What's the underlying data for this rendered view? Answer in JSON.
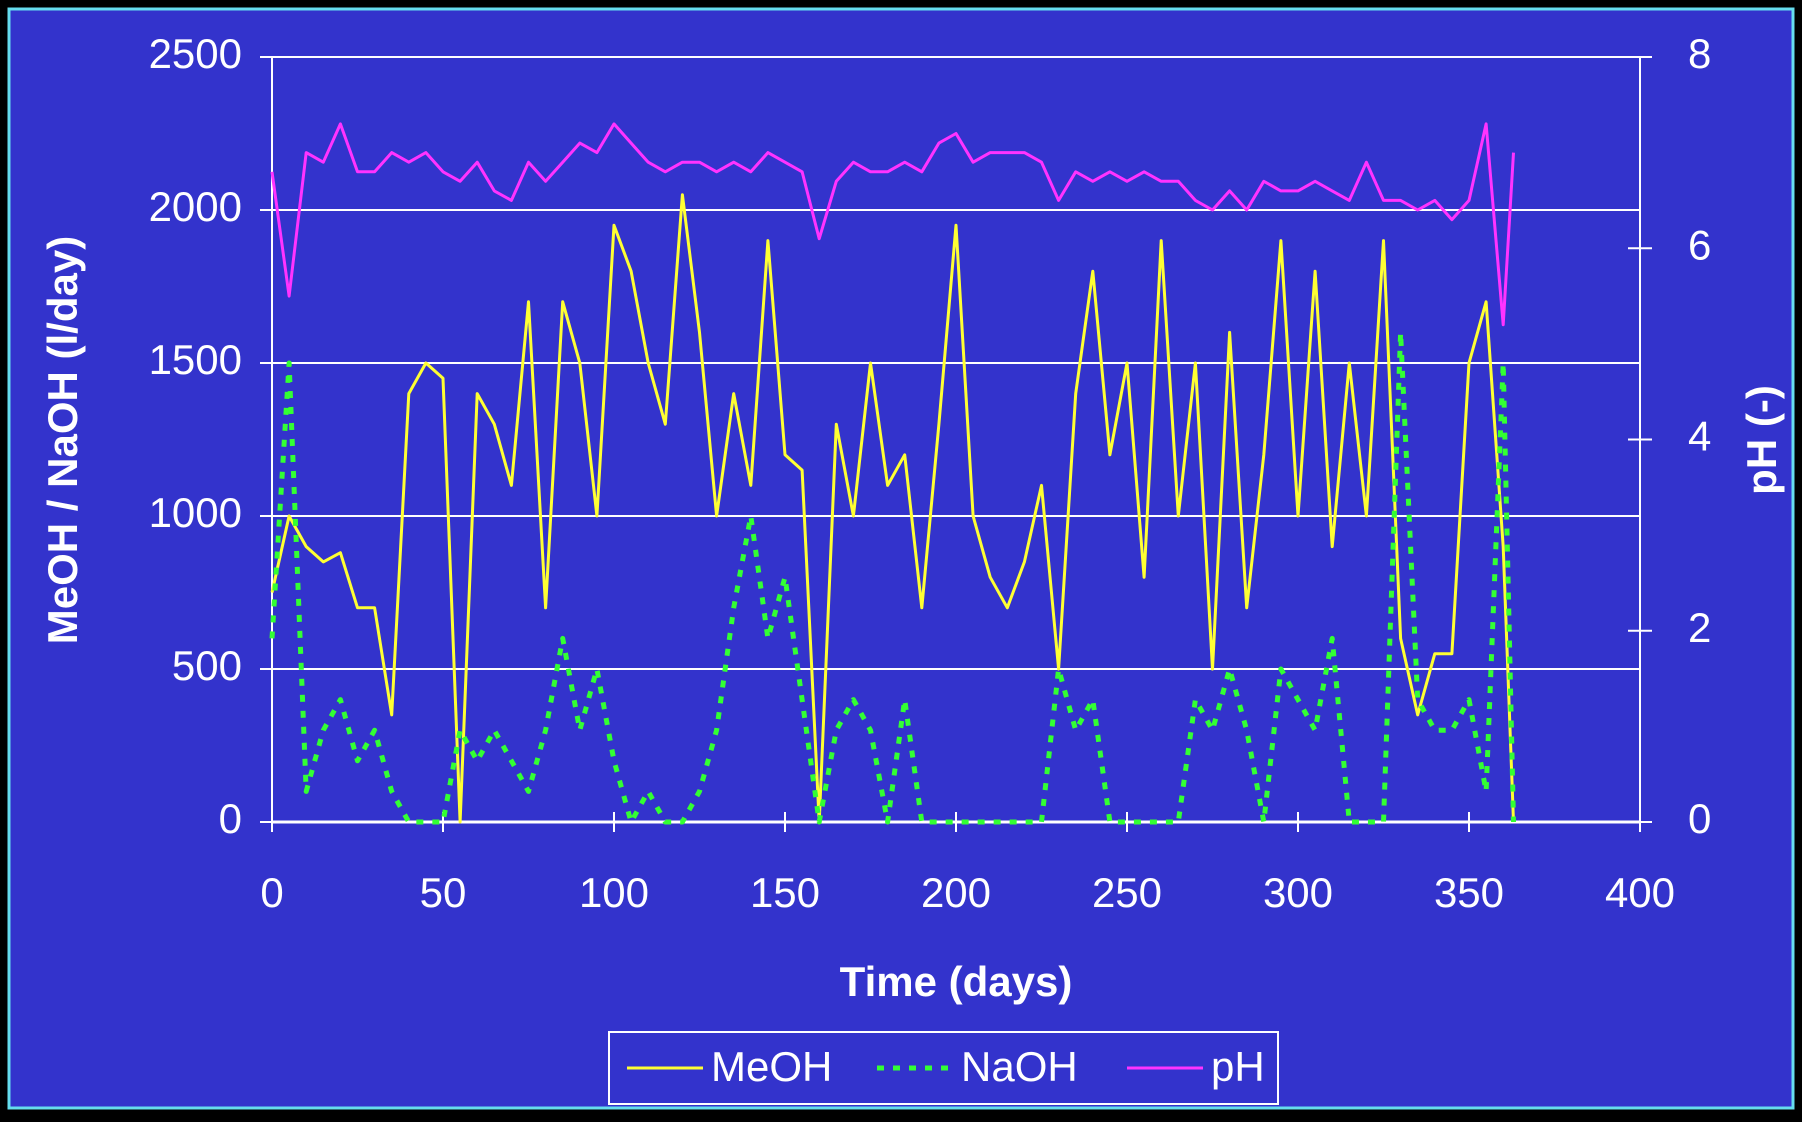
{
  "chart_data": {
    "type": "line",
    "xlabel": "Time (days)",
    "ylabel": "MeOH / NaOH (l/day)",
    "y2label": "pH (-)",
    "x": [
      0,
      5,
      10,
      15,
      20,
      25,
      30,
      35,
      40,
      45,
      50,
      55,
      60,
      65,
      70,
      75,
      80,
      85,
      90,
      95,
      100,
      105,
      110,
      115,
      120,
      125,
      130,
      135,
      140,
      145,
      150,
      155,
      160,
      165,
      170,
      175,
      180,
      185,
      190,
      195,
      200,
      205,
      210,
      215,
      220,
      225,
      230,
      235,
      240,
      245,
      250,
      255,
      260,
      265,
      270,
      275,
      280,
      285,
      290,
      295,
      300,
      305,
      310,
      315,
      320,
      325,
      330,
      335,
      340,
      345,
      350,
      355,
      360,
      363
    ],
    "series": [
      {
        "name": "MeOH",
        "color": "#ffff33",
        "dash": false,
        "values": [
          750,
          1000,
          900,
          850,
          880,
          700,
          700,
          350,
          1400,
          1500,
          1450,
          0,
          1400,
          1300,
          1100,
          1700,
          700,
          1700,
          1500,
          1000,
          1950,
          1800,
          1500,
          1300,
          2050,
          1600,
          1000,
          1400,
          1100,
          1900,
          1200,
          1150,
          0,
          1300,
          1000,
          1500,
          1100,
          1200,
          700,
          1300,
          1950,
          1000,
          800,
          700,
          850,
          1100,
          500,
          1400,
          1800,
          1200,
          1500,
          800,
          1900,
          1000,
          1500,
          500,
          1600,
          700,
          1200,
          1900,
          1000,
          1800,
          900,
          1500,
          1000,
          1900,
          600,
          350,
          550,
          550,
          1500,
          1700,
          900,
          0
        ]
      },
      {
        "name": "NaOH",
        "color": "#33ff33",
        "dash": true,
        "values": [
          600,
          1500,
          100,
          300,
          400,
          200,
          300,
          100,
          0,
          0,
          0,
          300,
          200,
          300,
          200,
          100,
          300,
          600,
          300,
          500,
          200,
          0,
          100,
          0,
          0,
          100,
          300,
          700,
          1000,
          600,
          800,
          400,
          0,
          300,
          400,
          300,
          0,
          400,
          0,
          0,
          0,
          0,
          0,
          0,
          0,
          0,
          500,
          300,
          400,
          0,
          0,
          0,
          0,
          0,
          400,
          300,
          500,
          300,
          0,
          500,
          400,
          300,
          600,
          0,
          0,
          0,
          1600,
          400,
          300,
          300,
          400,
          100,
          1500,
          0
        ]
      },
      {
        "name": "pH",
        "color": "#ff33ff",
        "dash": false,
        "axis": "y2",
        "values": [
          6.8,
          5.5,
          7.0,
          6.9,
          7.3,
          6.8,
          6.8,
          7.0,
          6.9,
          7.0,
          6.8,
          6.7,
          6.9,
          6.6,
          6.5,
          6.9,
          6.7,
          6.9,
          7.1,
          7.0,
          7.3,
          7.1,
          6.9,
          6.8,
          6.9,
          6.9,
          6.8,
          6.9,
          6.8,
          7.0,
          6.9,
          6.8,
          6.1,
          6.7,
          6.9,
          6.8,
          6.8,
          6.9,
          6.8,
          7.1,
          7.2,
          6.9,
          7.0,
          7.0,
          7.0,
          6.9,
          6.5,
          6.8,
          6.7,
          6.8,
          6.7,
          6.8,
          6.7,
          6.7,
          6.5,
          6.4,
          6.6,
          6.4,
          6.7,
          6.6,
          6.6,
          6.7,
          6.6,
          6.5,
          6.9,
          6.5,
          6.5,
          6.4,
          6.5,
          6.3,
          6.5,
          7.3,
          5.2,
          7.0
        ]
      }
    ],
    "xlim": [
      0,
      400
    ],
    "xticks": [
      0,
      50,
      100,
      150,
      200,
      250,
      300,
      350,
      400
    ],
    "ylim": [
      0,
      2500
    ],
    "yticks": [
      0,
      500,
      1000,
      1500,
      2000,
      2500
    ],
    "y2lim": [
      0,
      8
    ],
    "y2ticks": [
      0,
      2,
      4,
      6,
      8
    ],
    "grid": true,
    "legend": "bottom"
  }
}
